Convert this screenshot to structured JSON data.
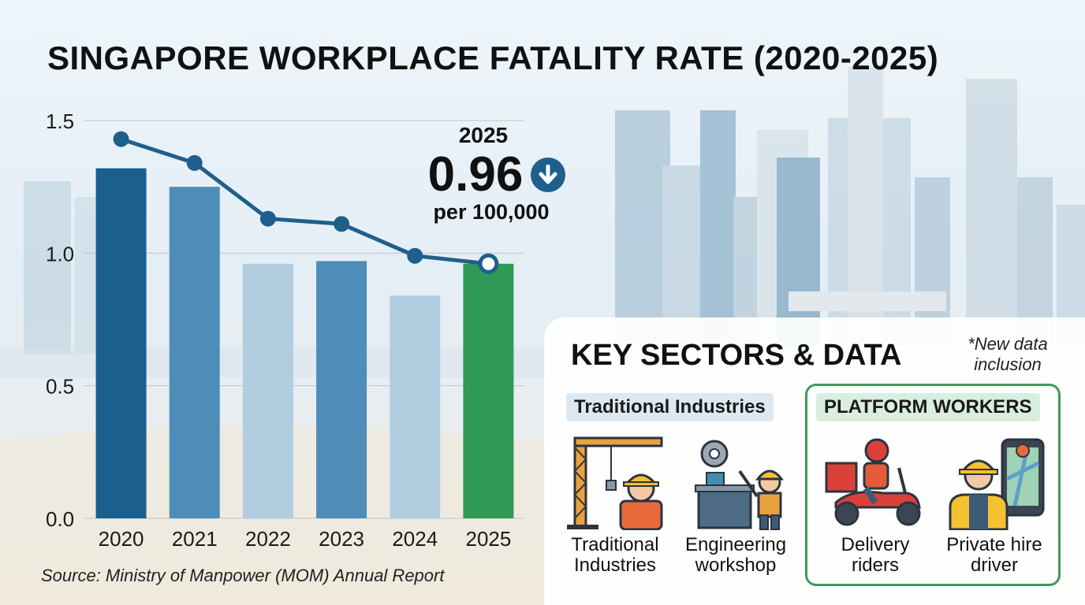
{
  "title": "SINGAPORE WORKPLACE FATALITY RATE (2020-2025)",
  "source": "Source: Ministry of Manpower (MOM) Annual Report",
  "callout": {
    "year": "2025",
    "value": "0.96",
    "unit": "per 100,000",
    "trend_icon": "arrow-down-icon"
  },
  "chart_data": {
    "type": "bar",
    "title": "SINGAPORE WORKPLACE FATALITY RATE (2020-2025)",
    "categories": [
      "2020",
      "2021",
      "2022",
      "2023",
      "2024",
      "2025"
    ],
    "series": [
      {
        "type": "bar",
        "values": [
          1.32,
          1.25,
          0.96,
          0.97,
          0.84,
          0.96
        ]
      },
      {
        "type": "line",
        "values": [
          1.43,
          1.34,
          1.13,
          1.11,
          0.99,
          0.96
        ]
      }
    ],
    "ylim": [
      0.0,
      1.5
    ],
    "yticks": [
      "0.0",
      "0.5",
      "1.0",
      "1.5"
    ],
    "grid": true,
    "bar_colors": [
      "#1b5f8f",
      "#4f8db9",
      "#b3cde0",
      "#4f8db9",
      "#b3cde0",
      "#2e9a55"
    ],
    "line_color": "#1e5f8c"
  },
  "panel": {
    "title": "KEY SECTORS & DATA",
    "note": "*New data inclusion",
    "groups": [
      {
        "label": "Traditional Industries",
        "sectors": [
          {
            "label": "Traditional Industries",
            "icon": "crane-worker-icon"
          },
          {
            "label": "Engineering workshop",
            "icon": "workshop-worker-icon"
          }
        ]
      },
      {
        "label": "PLATFORM WORKERS",
        "sectors": [
          {
            "label": "Delivery riders",
            "icon": "delivery-scooter-icon"
          },
          {
            "label": "Private hire driver",
            "icon": "ride-hail-driver-icon"
          }
        ]
      }
    ]
  }
}
